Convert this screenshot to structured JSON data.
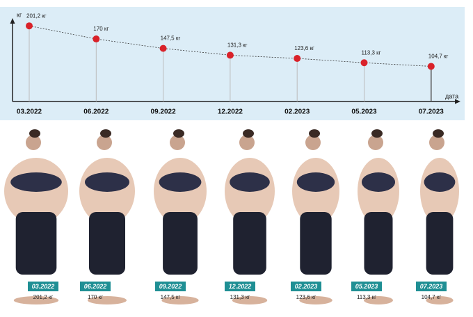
{
  "chart_data": {
    "type": "line",
    "y_label": "кг",
    "x_label": "дата",
    "categories": [
      "03.2022",
      "06.2022",
      "09.2022",
      "12.2022",
      "02.2023",
      "05.2023",
      "07.2023"
    ],
    "values": [
      201.2,
      170,
      147.5,
      131.3,
      123.6,
      113.3,
      104.7
    ],
    "value_labels": [
      "201,2 кг",
      "170 кг",
      "147,5 кг",
      "131,3 кг",
      "123,6 кг",
      "113,3 кг",
      "104,7 кг"
    ],
    "color": "#d9222a",
    "ylim": [
      21,
      233
    ]
  }
}
